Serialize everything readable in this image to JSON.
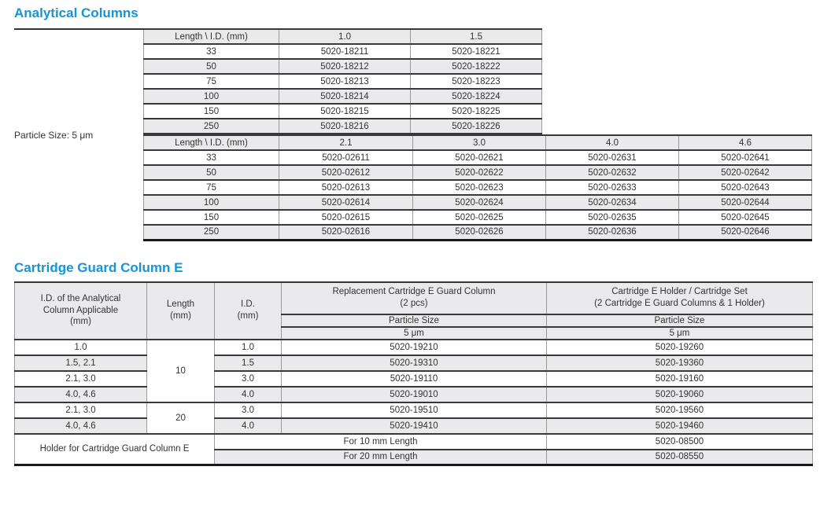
{
  "document": {
    "colors": {
      "accent_blue": "#1296d7",
      "row_shade": "#eaeaec",
      "rule_dark": "#383838",
      "rule_gray": "#9b9b9b"
    },
    "section1": {
      "title": "Analytical Columns",
      "side_label": "Particle Size: 5 μm",
      "table_small_id": {
        "header": [
          "Length \\ I.D. (mm)",
          "1.0",
          "1.5"
        ],
        "rows": [
          [
            "33",
            "5020-18211",
            "5020-18221"
          ],
          [
            "50",
            "5020-18212",
            "5020-18222"
          ],
          [
            "75",
            "5020-18213",
            "5020-18223"
          ],
          [
            "100",
            "5020-18214",
            "5020-18224"
          ],
          [
            "150",
            "5020-18215",
            "5020-18225"
          ],
          [
            "250",
            "5020-18216",
            "5020-18226"
          ]
        ]
      },
      "table_large_id": {
        "header": [
          "Length \\ I.D. (mm)",
          "2.1",
          "3.0",
          "4.0",
          "4.6"
        ],
        "rows": [
          [
            "33",
            "5020-02611",
            "5020-02621",
            "5020-02631",
            "5020-02641"
          ],
          [
            "50",
            "5020-02612",
            "5020-02622",
            "5020-02632",
            "5020-02642"
          ],
          [
            "75",
            "5020-02613",
            "5020-02623",
            "5020-02633",
            "5020-02643"
          ],
          [
            "100",
            "5020-02614",
            "5020-02624",
            "5020-02634",
            "5020-02644"
          ],
          [
            "150",
            "5020-02615",
            "5020-02625",
            "5020-02635",
            "5020-02645"
          ],
          [
            "250",
            "5020-02616",
            "5020-02626",
            "5020-02636",
            "5020-02646"
          ]
        ]
      }
    },
    "section2": {
      "title": "Cartridge Guard Column E",
      "table": {
        "headers": {
          "col1_lines": [
            "I.D. of the Analytical",
            "Column Applicable",
            "(mm)"
          ],
          "col2_lines": [
            "Length",
            "(mm)"
          ],
          "col3_lines": [
            "I.D.",
            "(mm)"
          ],
          "col4_lines": [
            "Replacement Cartridge E Guard Column",
            "(2 pcs)"
          ],
          "col5_lines": [
            "Cartridge E Holder / Cartridge Set",
            "(2 Cartridge E Guard Columns & 1 Holder)"
          ],
          "particle_size_label": "Particle Size",
          "particle_size_value": "5 μm"
        },
        "length_groups": {
          "g10": "10",
          "g20": "20"
        },
        "rows": [
          {
            "id_applicable": "1.0",
            "id": "1.0",
            "replacement": "5020-19210",
            "holder_set": "5020-19260"
          },
          {
            "id_applicable": "1.5, 2.1",
            "id": "1.5",
            "replacement": "5020-19310",
            "holder_set": "5020-19360"
          },
          {
            "id_applicable": "2.1, 3.0",
            "id": "3.0",
            "replacement": "5020-19110",
            "holder_set": "5020-19160"
          },
          {
            "id_applicable": "4.0, 4.6",
            "id": "4.0",
            "replacement": "5020-19010",
            "holder_set": "5020-19060"
          },
          {
            "id_applicable": "2.1, 3.0",
            "id": "3.0",
            "replacement": "5020-19510",
            "holder_set": "5020-19560"
          },
          {
            "id_applicable": "4.0, 4.6",
            "id": "4.0",
            "replacement": "5020-19410",
            "holder_set": "5020-19460"
          }
        ],
        "holder": {
          "label": "Holder for Cartridge Guard Column E",
          "rows": [
            {
              "for_length": "For 10 mm Length",
              "part": "5020-08500"
            },
            {
              "for_length": "For 20 mm Length",
              "part": "5020-08550"
            }
          ]
        }
      }
    }
  }
}
